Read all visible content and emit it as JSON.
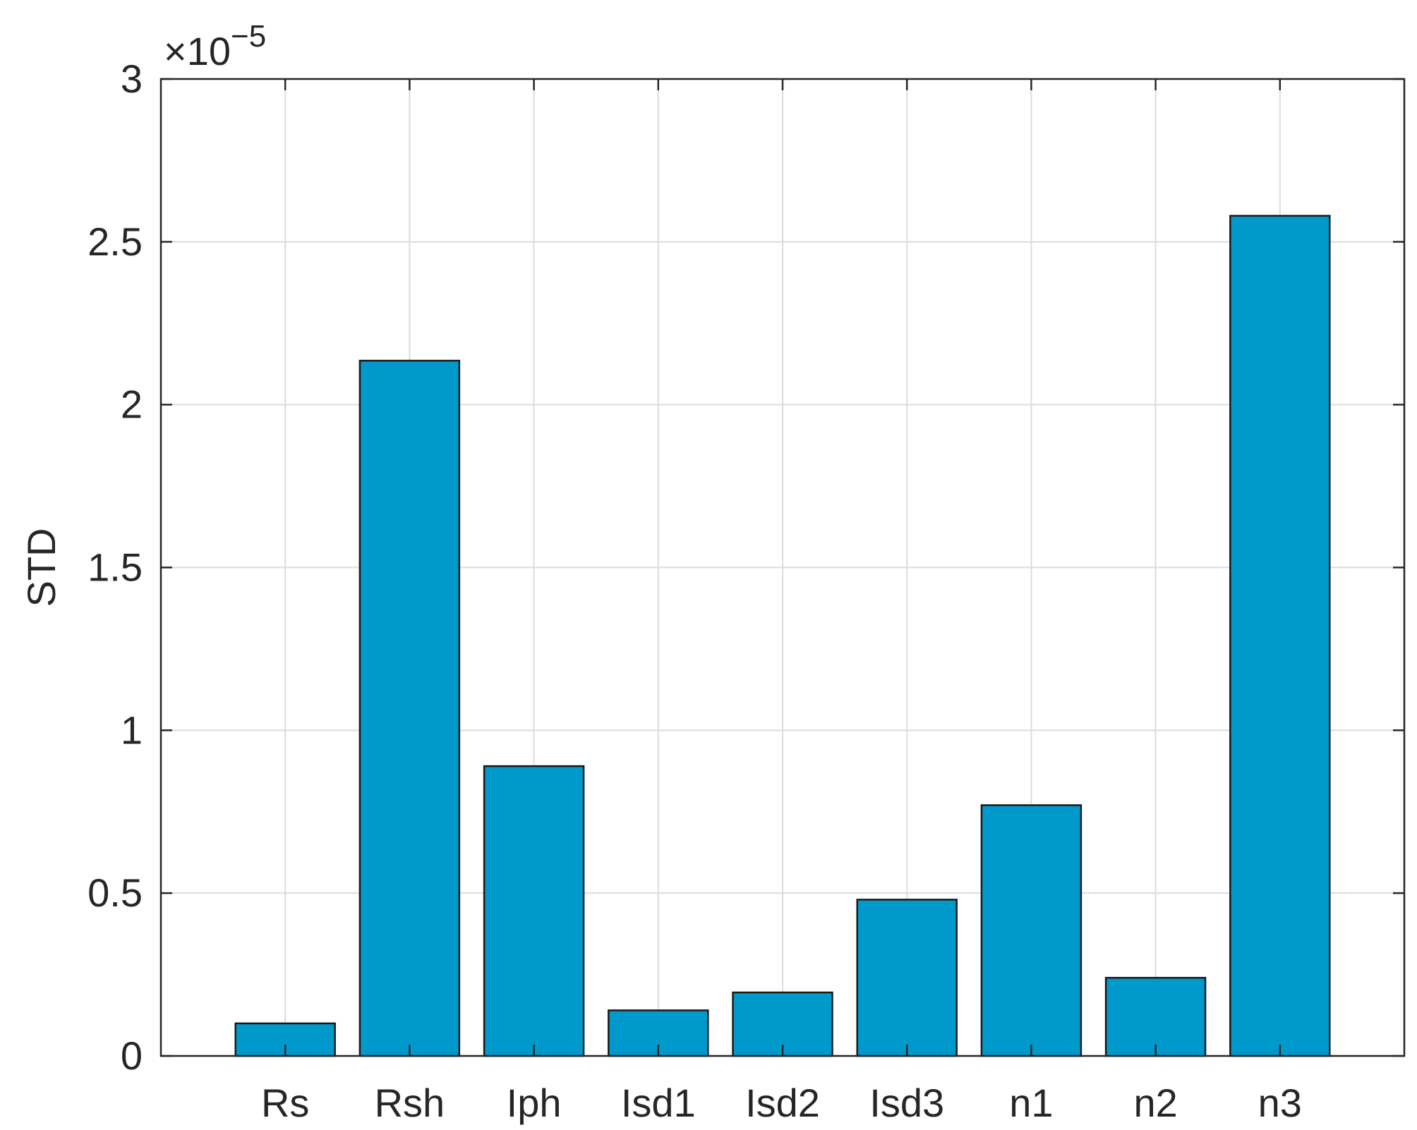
{
  "chart_data": {
    "type": "bar",
    "categories": [
      "Rs",
      "Rsh",
      "Iph",
      "Isd1",
      "Isd2",
      "Isd3",
      "n1",
      "n2",
      "n3"
    ],
    "values": [
      0.1,
      2.135,
      0.89,
      0.14,
      0.195,
      0.48,
      0.77,
      0.24,
      2.58
    ],
    "value_multiplier": "×10^-5",
    "title": "",
    "xlabel": "",
    "ylabel": "STD",
    "ylim": [
      0,
      3
    ],
    "yticks": [
      "0",
      "0.5",
      "1",
      "1.5",
      "2",
      "2.5",
      "3"
    ],
    "exponent_label": {
      "base": "×10",
      "power": "−5"
    },
    "grid": true,
    "bar_color": "#0099CC",
    "bar_edge_color": "#1a1a1a"
  }
}
